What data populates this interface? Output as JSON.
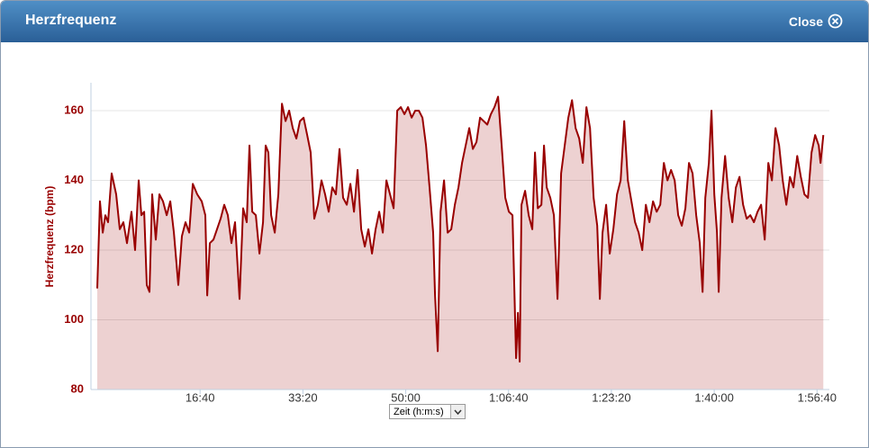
{
  "dialog": {
    "title": "Herzfrequenz",
    "close": "Close"
  },
  "x_axis_select": "Zeit (h:m:s)",
  "chart_data": {
    "type": "area",
    "y_label": "Herzfrequenz (bpm)",
    "color": "#990000",
    "grid": true,
    "ylim": [
      80,
      168
    ],
    "yticks": [
      80,
      100,
      120,
      140,
      160
    ],
    "xlim": [
      0,
      7120
    ],
    "xticks": [
      {
        "value": 1000,
        "label": "16:40"
      },
      {
        "value": 2000,
        "label": "33:20"
      },
      {
        "value": 3000,
        "label": "50:00"
      },
      {
        "value": 4000,
        "label": "1:06:40"
      },
      {
        "value": 5000,
        "label": "1:23:20"
      },
      {
        "value": 6000,
        "label": "1:40:00"
      },
      {
        "value": 7000,
        "label": "1:56:40"
      }
    ],
    "x": [
      0,
      26,
      53,
      79,
      105,
      140,
      184,
      219,
      254,
      289,
      333,
      368,
      403,
      429,
      456,
      482,
      508,
      534,
      569,
      604,
      639,
      675,
      710,
      745,
      788,
      823,
      858,
      894,
      929,
      972,
      1016,
      1051,
      1069,
      1095,
      1130,
      1165,
      1200,
      1235,
      1270,
      1305,
      1340,
      1384,
      1419,
      1454,
      1480,
      1507,
      1542,
      1577,
      1612,
      1638,
      1664,
      1691,
      1726,
      1761,
      1796,
      1831,
      1866,
      1901,
      1936,
      1971,
      2006,
      2041,
      2076,
      2111,
      2146,
      2181,
      2216,
      2251,
      2286,
      2321,
      2356,
      2391,
      2427,
      2462,
      2497,
      2532,
      2567,
      2602,
      2637,
      2672,
      2707,
      2742,
      2777,
      2812,
      2847,
      2882,
      2917,
      2952,
      2987,
      3022,
      3057,
      3092,
      3127,
      3162,
      3197,
      3232,
      3267,
      3285,
      3311,
      3338,
      3373,
      3408,
      3443,
      3478,
      3513,
      3548,
      3583,
      3618,
      3653,
      3688,
      3723,
      3758,
      3793,
      3828,
      3863,
      3898,
      3933,
      3968,
      4003,
      4038,
      4073,
      4091,
      4108,
      4126,
      4161,
      4196,
      4231,
      4257,
      4284,
      4319,
      4345,
      4371,
      4406,
      4441,
      4476,
      4511,
      4546,
      4581,
      4617,
      4652,
      4687,
      4722,
      4757,
      4792,
      4827,
      4862,
      4888,
      4914,
      4949,
      4984,
      5019,
      5055,
      5090,
      5125,
      5160,
      5195,
      5230,
      5265,
      5300,
      5335,
      5370,
      5405,
      5440,
      5475,
      5510,
      5545,
      5580,
      5615,
      5650,
      5685,
      5720,
      5755,
      5790,
      5825,
      5860,
      5887,
      5913,
      5948,
      5974,
      6001,
      6027,
      6044,
      6071,
      6106,
      6141,
      6176,
      6211,
      6246,
      6281,
      6316,
      6351,
      6386,
      6421,
      6456,
      6491,
      6526,
      6561,
      6596,
      6631,
      6666,
      6701,
      6736,
      6771,
      6807,
      6842,
      6877,
      6912,
      6947,
      6982,
      7017,
      7034,
      7061
    ],
    "series": [
      {
        "name": "Herzfrequenz",
        "color": "#990000",
        "values": [
          109,
          134,
          125,
          130,
          128,
          142,
          136,
          126,
          128,
          122,
          131,
          120,
          140,
          130,
          131,
          110,
          108,
          136,
          123,
          136,
          134,
          130,
          134,
          125,
          110,
          124,
          128,
          125,
          139,
          136,
          134,
          130,
          107,
          122,
          123,
          126,
          129,
          133,
          130,
          122,
          128,
          106,
          132,
          128,
          150,
          131,
          130,
          119,
          128,
          150,
          148,
          130,
          125,
          136,
          162,
          157,
          160,
          155,
          152,
          157,
          158,
          153,
          148,
          129,
          133,
          140,
          136,
          131,
          138,
          136,
          149,
          135,
          133,
          139,
          131,
          143,
          126,
          121,
          126,
          119,
          126,
          131,
          125,
          140,
          136,
          132,
          160,
          161,
          159,
          161,
          158,
          160,
          160,
          158,
          150,
          138,
          125,
          107,
          91,
          131,
          140,
          125,
          126,
          133,
          138,
          145,
          150,
          155,
          149,
          151,
          158,
          157,
          156,
          159,
          161,
          164,
          150,
          135,
          131,
          130,
          89,
          102,
          88,
          133,
          137,
          130,
          126,
          148,
          132,
          133,
          150,
          138,
          135,
          130,
          106,
          142,
          150,
          158,
          163,
          155,
          152,
          145,
          161,
          155,
          135,
          127,
          106,
          125,
          133,
          119,
          126,
          136,
          140,
          157,
          140,
          134,
          128,
          125,
          120,
          133,
          128,
          134,
          131,
          133,
          145,
          140,
          143,
          140,
          130,
          127,
          132,
          145,
          142,
          130,
          122,
          108,
          135,
          145,
          160,
          136,
          125,
          108,
          135,
          147,
          135,
          128,
          138,
          141,
          133,
          129,
          130,
          128,
          131,
          133,
          123,
          145,
          140,
          155,
          150,
          140,
          133,
          141,
          138,
          147,
          141,
          136,
          135,
          148,
          153,
          150,
          145,
          153
        ]
      }
    ]
  }
}
